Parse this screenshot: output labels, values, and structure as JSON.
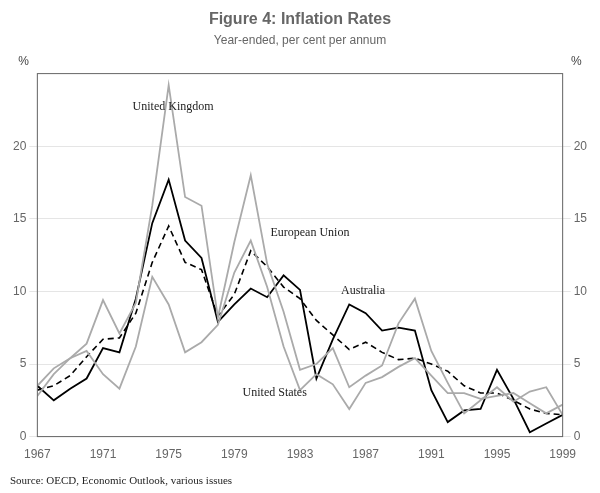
{
  "chart_data": {
    "type": "line",
    "title": "Figure 4: Inflation Rates",
    "subtitle": "Year-ended, per cent per annum",
    "ylabel": "%",
    "y2label": "%",
    "source": "Source: OECD, Economic Outlook, various issues",
    "x": [
      1967,
      1968,
      1969,
      1970,
      1971,
      1972,
      1973,
      1974,
      1975,
      1976,
      1977,
      1978,
      1979,
      1980,
      1981,
      1982,
      1983,
      1984,
      1985,
      1986,
      1987,
      1988,
      1989,
      1990,
      1991,
      1992,
      1993,
      1994,
      1995,
      1996,
      1997,
      1998,
      1999
    ],
    "series": [
      {
        "name": "United States",
        "color": "#aaaaaa",
        "line_style": "solid",
        "values": [
          2.8,
          4.3,
          5.4,
          5.9,
          4.3,
          3.3,
          6.2,
          11.0,
          9.1,
          5.8,
          6.5,
          7.7,
          11.3,
          13.5,
          10.3,
          6.2,
          3.2,
          4.3,
          3.6,
          1.9,
          3.7,
          4.1,
          4.8,
          5.4,
          4.2,
          3.0,
          3.0,
          2.6,
          2.8,
          3.0,
          2.3,
          1.6,
          2.2
        ]
      },
      {
        "name": "United Kingdom",
        "color": "#aaaaaa",
        "line_style": "solid",
        "values": [
          3.5,
          4.7,
          5.4,
          6.4,
          9.4,
          7.1,
          9.2,
          15.9,
          24.2,
          16.5,
          15.9,
          8.2,
          13.4,
          18.0,
          11.9,
          8.6,
          4.6,
          5.0,
          6.1,
          3.4,
          4.2,
          4.9,
          7.8,
          9.5,
          5.9,
          3.7,
          1.6,
          2.5,
          3.4,
          2.4,
          3.1,
          3.4,
          1.5
        ]
      },
      {
        "name": "European Union",
        "color": "#000000",
        "line_style": "dashed",
        "values": [
          3.2,
          3.5,
          4.2,
          5.5,
          6.7,
          6.8,
          8.5,
          12.0,
          14.5,
          12.0,
          11.5,
          8.3,
          9.8,
          12.8,
          11.7,
          10.3,
          9.5,
          8.0,
          7.0,
          6.0,
          6.5,
          5.8,
          5.3,
          5.4,
          5.0,
          4.5,
          3.5,
          3.0,
          3.0,
          2.5,
          1.9,
          1.6,
          1.5
        ]
      },
      {
        "name": "Australia",
        "color": "#000000",
        "line_style": "solid",
        "values": [
          3.5,
          2.5,
          3.3,
          4.0,
          6.1,
          5.8,
          9.5,
          14.7,
          17.7,
          13.5,
          12.3,
          7.9,
          9.1,
          10.2,
          9.6,
          11.1,
          10.1,
          4.0,
          6.7,
          9.1,
          8.5,
          7.3,
          7.5,
          7.3,
          3.2,
          1.0,
          1.8,
          1.9,
          4.6,
          2.6,
          0.3,
          0.9,
          1.5
        ]
      }
    ],
    "xlim": [
      1967,
      1999
    ],
    "xticks": [
      1967,
      1971,
      1975,
      1979,
      1983,
      1987,
      1991,
      1995,
      1999
    ],
    "ylim": [
      0,
      25
    ],
    "yticks": [
      0,
      5,
      10,
      15,
      20
    ],
    "y2lim": [
      0,
      25
    ],
    "y2ticks": [
      0,
      5,
      10,
      15,
      20
    ],
    "grid": "y",
    "annotations": [
      {
        "text": "United Kingdom",
        "x": 1972.8,
        "y": 22.5
      },
      {
        "text": "European Union",
        "x": 1981.2,
        "y": 13.8
      },
      {
        "text": "Australia",
        "x": 1985.5,
        "y": 9.8
      },
      {
        "text": "United States",
        "x": 1979.5,
        "y": 2.8
      }
    ]
  }
}
